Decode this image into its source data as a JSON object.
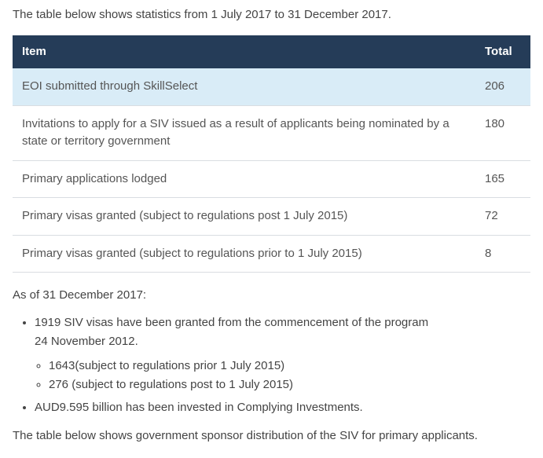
{
  "intro_text": "The table below shows statistics from 1 July 2017 to 31 December 2017.",
  "table": {
    "header_item": "Item",
    "header_total": "Total",
    "header_bg": "#253c58",
    "header_fg": "#ffffff",
    "row_highlight_bg": "#d9ecf7",
    "border_color": "#d9dde1",
    "rows": [
      {
        "item": "EOI submitted through SkillSelect",
        "total": "206"
      },
      {
        "item": "Invitations to apply for a SIV issued as a result of applicants being nominated by a state or territory government",
        "total": "180"
      },
      {
        "item": "Primary applications lodged",
        "total": "165"
      },
      {
        "item": "Primary visas granted (subject to regulations post 1 July 2015)",
        "total": "72"
      },
      {
        "item": "Primary visas granted (subject to regulations prior to 1 July 2015)",
        "total": "8"
      }
    ]
  },
  "asof_text": "As of 31 December 2017:",
  "bullets": {
    "main_line1": "1919 SIV visas have been granted from the commencement of the program",
    "main_line1b": "24 November 2012.",
    "sub1": "1643(subject to regulations prior 1 July 2015)",
    "sub2": "276 (subject to regulations post to 1 July 2015)",
    "main_line2": "AUD9.595 billion has been invested in Complying Investments."
  },
  "footer_text": "The table below shows government sponsor distribution of the SIV for primary applicants."
}
